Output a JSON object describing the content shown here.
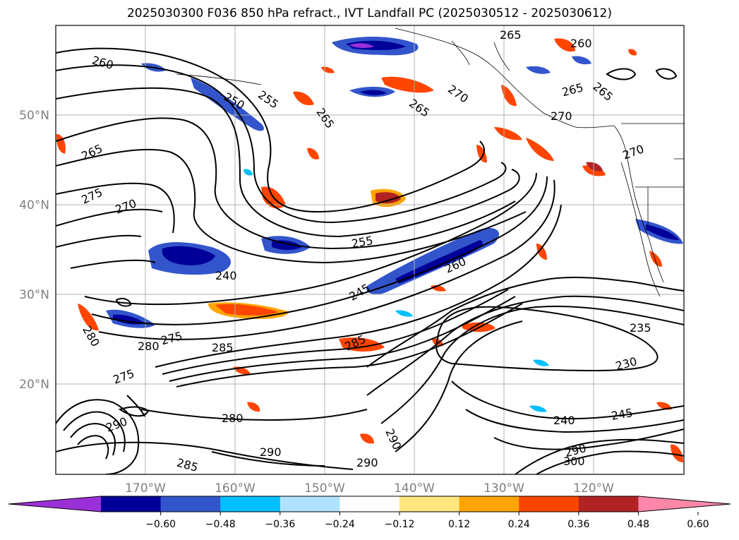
{
  "title": "2025030300 F036 850 hPa refract., IVT Landfall PC (2025030512 - 2025030612)",
  "map": {
    "lat_ticks": [
      "50°N",
      "40°N",
      "30°N",
      "20°N"
    ],
    "lon_ticks": [
      "170°W",
      "160°W",
      "150°W",
      "140°W",
      "130°W",
      "120°W"
    ],
    "contour_labels": [
      {
        "text": "260"
      },
      {
        "text": "250"
      },
      {
        "text": "255"
      },
      {
        "text": "265"
      },
      {
        "text": "265"
      },
      {
        "text": "265"
      },
      {
        "text": "270"
      },
      {
        "text": "275"
      },
      {
        "text": "270"
      },
      {
        "text": "255"
      },
      {
        "text": "240"
      },
      {
        "text": "245"
      },
      {
        "text": "260"
      },
      {
        "text": "280"
      },
      {
        "text": "280"
      },
      {
        "text": "275"
      },
      {
        "text": "285"
      },
      {
        "text": "285"
      },
      {
        "text": "275"
      },
      {
        "text": "280"
      },
      {
        "text": "290"
      },
      {
        "text": "290"
      },
      {
        "text": "285"
      },
      {
        "text": "290"
      },
      {
        "text": "290"
      },
      {
        "text": "235"
      },
      {
        "text": "230"
      },
      {
        "text": "240"
      },
      {
        "text": "245"
      },
      {
        "text": "290"
      },
      {
        "text": "300"
      },
      {
        "text": "265"
      },
      {
        "text": "260"
      },
      {
        "text": "265"
      },
      {
        "text": "270"
      },
      {
        "text": "270"
      },
      {
        "text": "265"
      }
    ]
  },
  "colorbar": {
    "ticks": [
      "−0.60",
      "−0.48",
      "−0.36",
      "−0.24",
      "−0.12",
      "0.12",
      "0.24",
      "0.36",
      "0.48",
      "0.60"
    ],
    "colors": [
      "#9b30d9",
      "#000099",
      "#3355cc",
      "#00bfff",
      "#aee3ff",
      "#ffffff",
      "#ffe680",
      "#ffa500",
      "#ff4500",
      "#b22222",
      "#ff88aa"
    ]
  }
}
